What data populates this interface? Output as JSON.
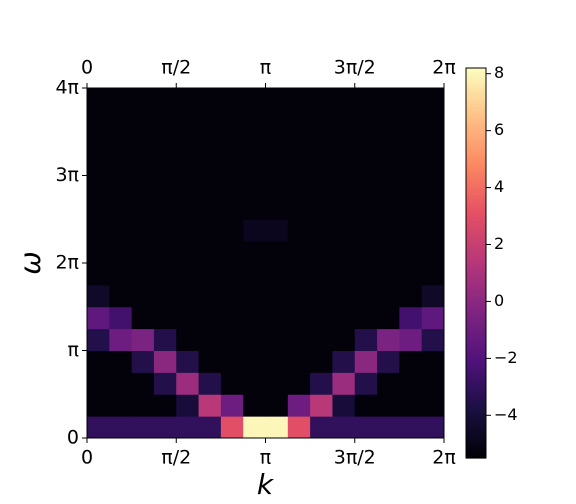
{
  "chart_data": {
    "type": "heatmap",
    "xlabel": "k",
    "ylabel": "ω",
    "xlim": [
      0,
      6.283185307179586
    ],
    "ylim": [
      0,
      12.566370614359172
    ],
    "xticks": [
      0,
      {
        "value": 1.5707963267948966,
        "label": "π/2"
      },
      {
        "value": 3.141592653589793,
        "label": "π"
      },
      {
        "value": 4.71238898038469,
        "label": "3π/2"
      },
      {
        "value": 6.283185307179586,
        "label": "2π"
      }
    ],
    "yticks": [
      0,
      {
        "value": 3.141592653589793,
        "label": "π"
      },
      {
        "value": 6.283185307179586,
        "label": "2π"
      },
      {
        "value": 9.42477796076938,
        "label": "3π"
      },
      {
        "value": 12.566370614359172,
        "label": "4π"
      }
    ],
    "colormap": "magma",
    "clim": [
      -5.5,
      8.2
    ],
    "cticks": [
      {
        "value": -4,
        "label": "−4"
      },
      {
        "value": -2,
        "label": "−2"
      },
      0,
      2,
      4,
      6,
      8
    ],
    "z": [
      [
        -3,
        -3,
        -3,
        -3,
        -3,
        -3,
        3,
        8,
        8,
        3,
        -3,
        -3,
        -3,
        -3,
        -3,
        -3
      ],
      [
        -5.3,
        -5.3,
        -5.3,
        -5.3,
        -4,
        1.5,
        -1,
        -5.3,
        -5.3,
        -1,
        1.5,
        -4,
        -5.3,
        -5.3,
        -5.3,
        -5.3
      ],
      [
        -5.3,
        -5.3,
        -5.3,
        -3.5,
        0.5,
        -3.5,
        -5.3,
        -5.3,
        -5.3,
        -5.3,
        -3.5,
        0.5,
        -3.5,
        -5.3,
        -5.3,
        -5.3
      ],
      [
        -5.3,
        -5.3,
        -3.5,
        0,
        -3.5,
        -5.3,
        -5.3,
        -5.3,
        -5.3,
        -5.3,
        -5.3,
        -3.5,
        0,
        -3.5,
        -5.3,
        -5.3
      ],
      [
        -3.5,
        -1,
        -0.5,
        -3.5,
        -5.3,
        -5.3,
        -5.3,
        -5.3,
        -5.3,
        -5.3,
        -5.3,
        -5.3,
        -3.5,
        -0.5,
        -1,
        -3.5
      ],
      [
        -1.5,
        -2.5,
        -5.3,
        -5.3,
        -5.3,
        -5.3,
        -5.3,
        -5.3,
        -5.3,
        -5.3,
        -5.3,
        -5.3,
        -5.3,
        -5.3,
        -2.5,
        -1.5
      ],
      [
        -4.5,
        -5.3,
        -5.3,
        -5.3,
        -5.3,
        -5.3,
        -5.3,
        -5.3,
        -5.3,
        -5.3,
        -5.3,
        -5.3,
        -5.3,
        -5.3,
        -5.3,
        -4.5
      ],
      [
        -5.3,
        -5.3,
        -5.3,
        -5.3,
        -5.3,
        -5.3,
        -5.3,
        -5.3,
        -5.3,
        -5.3,
        -5.3,
        -5.3,
        -5.3,
        -5.3,
        -5.3,
        -5.3
      ],
      [
        -5.3,
        -5.3,
        -5.3,
        -5.3,
        -5.3,
        -5.3,
        -5.3,
        -5.3,
        -5.3,
        -5.3,
        -5.3,
        -5.3,
        -5.3,
        -5.3,
        -5.3,
        -5.3
      ],
      [
        -5.3,
        -5.3,
        -5.3,
        -5.3,
        -5.3,
        -5.3,
        -5.3,
        -4.8,
        -4.8,
        -5.3,
        -5.3,
        -5.3,
        -5.3,
        -5.3,
        -5.3,
        -5.3
      ],
      [
        -5.3,
        -5.3,
        -5.3,
        -5.3,
        -5.3,
        -5.3,
        -5.3,
        -5.3,
        -5.3,
        -5.3,
        -5.3,
        -5.3,
        -5.3,
        -5.3,
        -5.3,
        -5.3
      ],
      [
        -5.3,
        -5.3,
        -5.3,
        -5.3,
        -5.3,
        -5.3,
        -5.3,
        -5.3,
        -5.3,
        -5.3,
        -5.3,
        -5.3,
        -5.3,
        -5.3,
        -5.3,
        -5.3
      ],
      [
        -5.3,
        -5.3,
        -5.3,
        -5.3,
        -5.3,
        -5.3,
        -5.3,
        -5.3,
        -5.3,
        -5.3,
        -5.3,
        -5.3,
        -5.3,
        -5.3,
        -5.3,
        -5.3
      ],
      [
        -5.3,
        -5.3,
        -5.3,
        -5.3,
        -5.3,
        -5.3,
        -5.3,
        -5.3,
        -5.3,
        -5.3,
        -5.3,
        -5.3,
        -5.3,
        -5.3,
        -5.3,
        -5.3
      ],
      [
        -5.3,
        -5.3,
        -5.3,
        -5.3,
        -5.3,
        -5.3,
        -5.3,
        -5.3,
        -5.3,
        -5.3,
        -5.3,
        -5.3,
        -5.3,
        -5.3,
        -5.3,
        -5.3
      ],
      [
        -5.3,
        -5.3,
        -5.3,
        -5.3,
        -5.3,
        -5.3,
        -5.3,
        -5.3,
        -5.3,
        -5.3,
        -5.3,
        -5.3,
        -5.3,
        -5.3,
        -5.3,
        -5.3
      ]
    ]
  }
}
